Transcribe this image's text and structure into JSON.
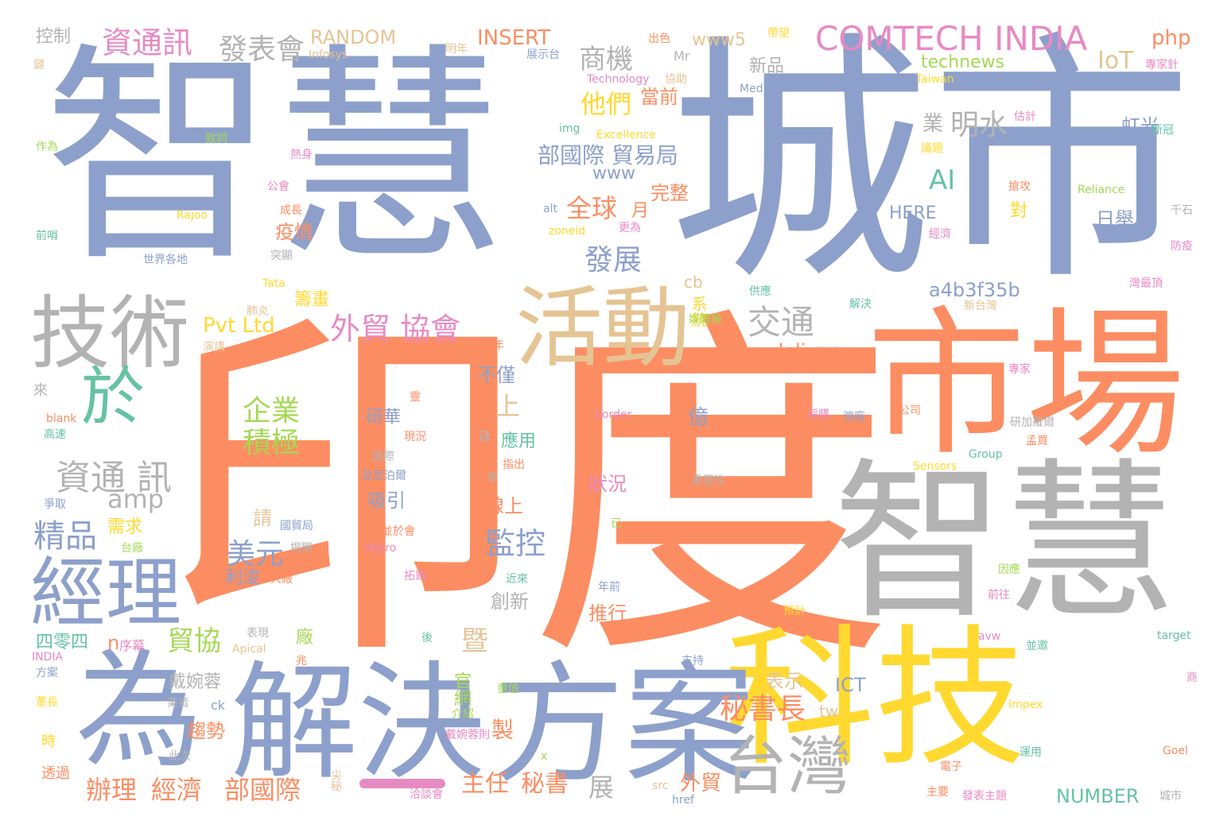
{
  "palette": {
    "blue": "#8DA0CB",
    "orange": "#FC8D62",
    "gray": "#B3B3B3",
    "yellow": "#FFD92F",
    "green": "#66C2A5",
    "pink": "#E78AC3",
    "tan": "#E5C494",
    "lime": "#A6D854"
  },
  "words": [
    {
      "text": "智慧",
      "color": "blue"
    },
    {
      "text": "城市",
      "color": "blue"
    },
    {
      "text": "印度",
      "color": "orange"
    },
    {
      "text": "市場",
      "color": "orange"
    },
    {
      "text": "智慧",
      "color": "gray"
    },
    {
      "text": "科技",
      "color": "yellow"
    },
    {
      "text": "解決",
      "color": "blue"
    },
    {
      "text": "方案",
      "color": "blue"
    },
    {
      "text": "為",
      "color": "blue"
    },
    {
      "text": "技術",
      "color": "gray"
    },
    {
      "text": "活動",
      "color": "tan"
    },
    {
      "text": "經理",
      "color": "blue"
    },
    {
      "text": "於",
      "color": "green"
    },
    {
      "text": "台灣",
      "color": "gray"
    },
    {
      "text": "COMTECH INDIA",
      "color": "pink"
    },
    {
      "text": "資通 訊",
      "color": "gray"
    },
    {
      "text": "外貿 協會",
      "color": "pink"
    },
    {
      "text": "資通訊",
      "color": "pink"
    },
    {
      "text": "發表會",
      "color": "gray"
    },
    {
      "text": "商機",
      "color": "gray"
    },
    {
      "text": "交通",
      "color": "gray"
    },
    {
      "text": "精品",
      "color": "blue"
    },
    {
      "text": "企業",
      "color": "lime"
    },
    {
      "text": "積極",
      "color": "lime"
    },
    {
      "text": "美元",
      "color": "blue"
    },
    {
      "text": "監控",
      "color": "blue"
    },
    {
      "text": "秘書長",
      "color": "orange"
    },
    {
      "text": "他們",
      "color": "yellow"
    },
    {
      "text": "部國際 貿易局",
      "color": "blue"
    },
    {
      "text": "全球",
      "color": "orange"
    },
    {
      "text": "發展",
      "color": "blue"
    },
    {
      "text": "IoT",
      "color": "tan"
    },
    {
      "text": "明水",
      "color": "gray"
    },
    {
      "text": "AI",
      "color": "green"
    },
    {
      "text": "amp",
      "color": "gray"
    },
    {
      "text": "辦理",
      "color": "orange"
    },
    {
      "text": "經濟",
      "color": "orange"
    },
    {
      "text": "部國際",
      "color": "orange"
    },
    {
      "text": "主任",
      "color": "orange"
    },
    {
      "text": "秘書",
      "color": "orange"
    },
    {
      "text": "展",
      "color": "gray"
    },
    {
      "text": "外貿",
      "color": "orange"
    },
    {
      "text": "貿協",
      "color": "lime"
    },
    {
      "text": "暨",
      "color": "tan"
    },
    {
      "text": "Pvt Ltd",
      "color": "yellow"
    },
    {
      "text": "delivery",
      "color": "orange"
    },
    {
      "text": "a4b3f35b",
      "color": "blue"
    },
    {
      "text": "technews",
      "color": "lime"
    },
    {
      "text": "RANDOM",
      "color": "tan"
    },
    {
      "text": "INSERT",
      "color": "orange"
    },
    {
      "text": "php",
      "color": "orange"
    },
    {
      "text": "www5",
      "color": "tan"
    },
    {
      "text": "www",
      "color": "blue"
    },
    {
      "text": "HERE",
      "color": "blue"
    },
    {
      "text": "NUMBER",
      "color": "green"
    },
    {
      "text": "ICT",
      "color": "blue"
    },
    {
      "text": "控制",
      "color": "gray"
    },
    {
      "text": "新品",
      "color": "gray"
    },
    {
      "text": "當前",
      "color": "orange"
    },
    {
      "text": "虹光",
      "color": "blue"
    },
    {
      "text": "日舉",
      "color": "blue"
    },
    {
      "text": "對",
      "color": "yellow"
    },
    {
      "text": "完整",
      "color": "orange"
    },
    {
      "text": "月",
      "color": "orange"
    },
    {
      "text": "疫情",
      "color": "orange"
    },
    {
      "text": "籌畫",
      "color": "yellow"
    },
    {
      "text": "系統",
      "color": "yellow"
    },
    {
      "text": "cb",
      "color": "tan"
    },
    {
      "text": "不僅",
      "color": "blue"
    },
    {
      "text": "上",
      "color": "tan"
    },
    {
      "text": "研華",
      "color": "blue"
    },
    {
      "text": "應用",
      "color": "green"
    },
    {
      "text": "狀況",
      "color": "pink"
    },
    {
      "text": "線上",
      "color": "orange"
    },
    {
      "text": "吸引",
      "color": "blue"
    },
    {
      "text": "需求",
      "color": "yellow"
    },
    {
      "text": "利淩",
      "color": "blue"
    },
    {
      "text": "創新",
      "color": "gray"
    },
    {
      "text": "推行",
      "color": "orange"
    },
    {
      "text": "廠",
      "color": "lime"
    },
    {
      "text": "表示",
      "color": "tan"
    },
    {
      "text": "戴婉蓉",
      "color": "gray"
    },
    {
      "text": "趨勢",
      "color": "orange"
    },
    {
      "text": "官網",
      "color": "lime"
    },
    {
      "text": "製",
      "color": "orange"
    },
    {
      "text": "四零四",
      "color": "green"
    },
    {
      "text": "序幕",
      "color": "pink"
    },
    {
      "text": "億",
      "color": "blue"
    },
    {
      "text": "業",
      "color": "gray"
    },
    {
      "text": "a",
      "color": "gray"
    },
    {
      "text": "請",
      "color": "tan"
    },
    {
      "text": "n",
      "color": "orange"
    },
    {
      "text": "tw",
      "color": "tan"
    },
    {
      "text": "Infosys",
      "color": "tan"
    },
    {
      "text": "Mr",
      "color": "gray"
    },
    {
      "text": "Technology",
      "color": "pink"
    },
    {
      "text": "Medical",
      "color": "blue"
    },
    {
      "text": "Excellence",
      "color": "yellow"
    },
    {
      "text": "Taiwan",
      "color": "yellow"
    },
    {
      "text": "Reliance",
      "color": "lime"
    },
    {
      "text": "Rajoo",
      "color": "yellow"
    },
    {
      "text": "Tata",
      "color": "yellow"
    },
    {
      "text": "Green",
      "color": "orange"
    },
    {
      "text": "border",
      "color": "pink"
    },
    {
      "text": "Sensors",
      "color": "yellow"
    },
    {
      "text": "Group",
      "color": "green"
    },
    {
      "text": "Wipro",
      "color": "pink"
    },
    {
      "text": "Apical",
      "color": "tan"
    },
    {
      "text": "Impex",
      "color": "yellow"
    },
    {
      "text": "Goel",
      "color": "orange"
    },
    {
      "text": "target",
      "color": "green"
    },
    {
      "text": "avw",
      "color": "pink"
    },
    {
      "text": "blank",
      "color": "orange"
    },
    {
      "text": "INDIA",
      "color": "pink"
    },
    {
      "text": "href",
      "color": "blue"
    },
    {
      "text": "src",
      "color": "tan"
    },
    {
      "text": "alt",
      "color": "blue"
    },
    {
      "text": "zoneid",
      "color": "yellow"
    },
    {
      "text": "img",
      "color": "green"
    },
    {
      "text": "ck",
      "color": "blue"
    },
    {
      "text": "x",
      "color": "lime"
    },
    {
      "text": "明年",
      "color": "tan"
    },
    {
      "text": "展示台",
      "color": "blue"
    },
    {
      "text": "出色",
      "color": "orange"
    },
    {
      "text": "帶望",
      "color": "yellow"
    },
    {
      "text": "協助",
      "color": "tan"
    },
    {
      "text": "專家針",
      "color": "pink"
    },
    {
      "text": "鍵",
      "color": "tan"
    },
    {
      "text": "作為",
      "color": "lime"
    },
    {
      "text": "熱身",
      "color": "pink"
    },
    {
      "text": "致詞",
      "color": "lime"
    },
    {
      "text": "公會",
      "color": "pink"
    },
    {
      "text": "成長",
      "color": "orange"
    },
    {
      "text": "前哨",
      "color": "green"
    },
    {
      "text": "世界各地",
      "color": "blue"
    },
    {
      "text": "突顯",
      "color": "gray"
    },
    {
      "text": "肺炎",
      "color": "tan"
    },
    {
      "text": "演講",
      "color": "tan"
    },
    {
      "text": "更為",
      "color": "pink"
    },
    {
      "text": "估計",
      "color": "pink"
    },
    {
      "text": "新冠",
      "color": "green"
    },
    {
      "text": "議題",
      "color": "yellow"
    },
    {
      "text": "搶攻",
      "color": "orange"
    },
    {
      "text": "千石",
      "color": "gray"
    },
    {
      "text": "經濟",
      "color": "pink"
    },
    {
      "text": "防疫",
      "color": "pink"
    },
    {
      "text": "灣最頂",
      "color": "pink"
    },
    {
      "text": "供應",
      "color": "green"
    },
    {
      "text": "解決",
      "color": "green"
    },
    {
      "text": "新台灣",
      "color": "tan"
    },
    {
      "text": "媒體廠",
      "color": "lime"
    },
    {
      "text": "年",
      "color": "orange"
    },
    {
      "text": "專家",
      "color": "pink"
    },
    {
      "text": "來",
      "color": "gray"
    },
    {
      "text": "高速",
      "color": "green"
    },
    {
      "text": "爭取",
      "color": "blue"
    },
    {
      "text": "國貿局",
      "color": "blue"
    },
    {
      "text": "揭開",
      "color": "gray"
    },
    {
      "text": "台廠",
      "color": "lime"
    },
    {
      "text": "大廠",
      "color": "orange"
    },
    {
      "text": "表現",
      "color": "gray"
    },
    {
      "text": "方案",
      "color": "blue"
    },
    {
      "text": "董長",
      "color": "yellow"
    },
    {
      "text": "業者",
      "color": "gray"
    },
    {
      "text": "時",
      "color": "yellow"
    },
    {
      "text": "此次",
      "color": "gray"
    },
    {
      "text": "透過",
      "color": "orange"
    },
    {
      "text": "介紹",
      "color": "lime"
    },
    {
      "text": "童值",
      "color": "lime"
    },
    {
      "text": "戴婉蓉則",
      "color": "pink"
    },
    {
      "text": "洽談會",
      "color": "pink"
    },
    {
      "text": "支持",
      "color": "blue"
    },
    {
      "text": "重要性",
      "color": "gray"
    },
    {
      "text": "指出",
      "color": "orange"
    },
    {
      "text": "國際",
      "color": "gray"
    },
    {
      "text": "及尼泊爾",
      "color": "blue"
    },
    {
      "text": "近來",
      "color": "green"
    },
    {
      "text": "年前",
      "color": "blue"
    },
    {
      "text": "預計",
      "color": "yellow"
    },
    {
      "text": "拓銷",
      "color": "pink"
    },
    {
      "text": "並於會",
      "color": "orange"
    },
    {
      "text": "參",
      "color": "gray"
    },
    {
      "text": "已",
      "color": "lime"
    },
    {
      "text": "後",
      "color": "green"
    },
    {
      "text": "兆",
      "color": "orange"
    },
    {
      "text": "採購",
      "color": "pink"
    },
    {
      "text": "灣廠",
      "color": "blue"
    },
    {
      "text": "公司",
      "color": "orange"
    },
    {
      "text": "研加羅爾",
      "color": "gray"
    },
    {
      "text": "孟買",
      "color": "orange"
    },
    {
      "text": "因應",
      "color": "lime"
    },
    {
      "text": "前往",
      "color": "pink"
    },
    {
      "text": "並邀",
      "color": "green"
    },
    {
      "text": "商",
      "color": "pink"
    },
    {
      "text": "電子",
      "color": "orange"
    },
    {
      "text": "運用",
      "color": "green"
    },
    {
      "text": "主要",
      "color": "orange"
    },
    {
      "text": "發表主題",
      "color": "pink"
    },
    {
      "text": "城市",
      "color": "gray"
    },
    {
      "text": "尖秘",
      "color": "tan"
    },
    {
      "text": "現況",
      "color": "orange"
    },
    {
      "text": "靈",
      "color": "orange"
    }
  ]
}
